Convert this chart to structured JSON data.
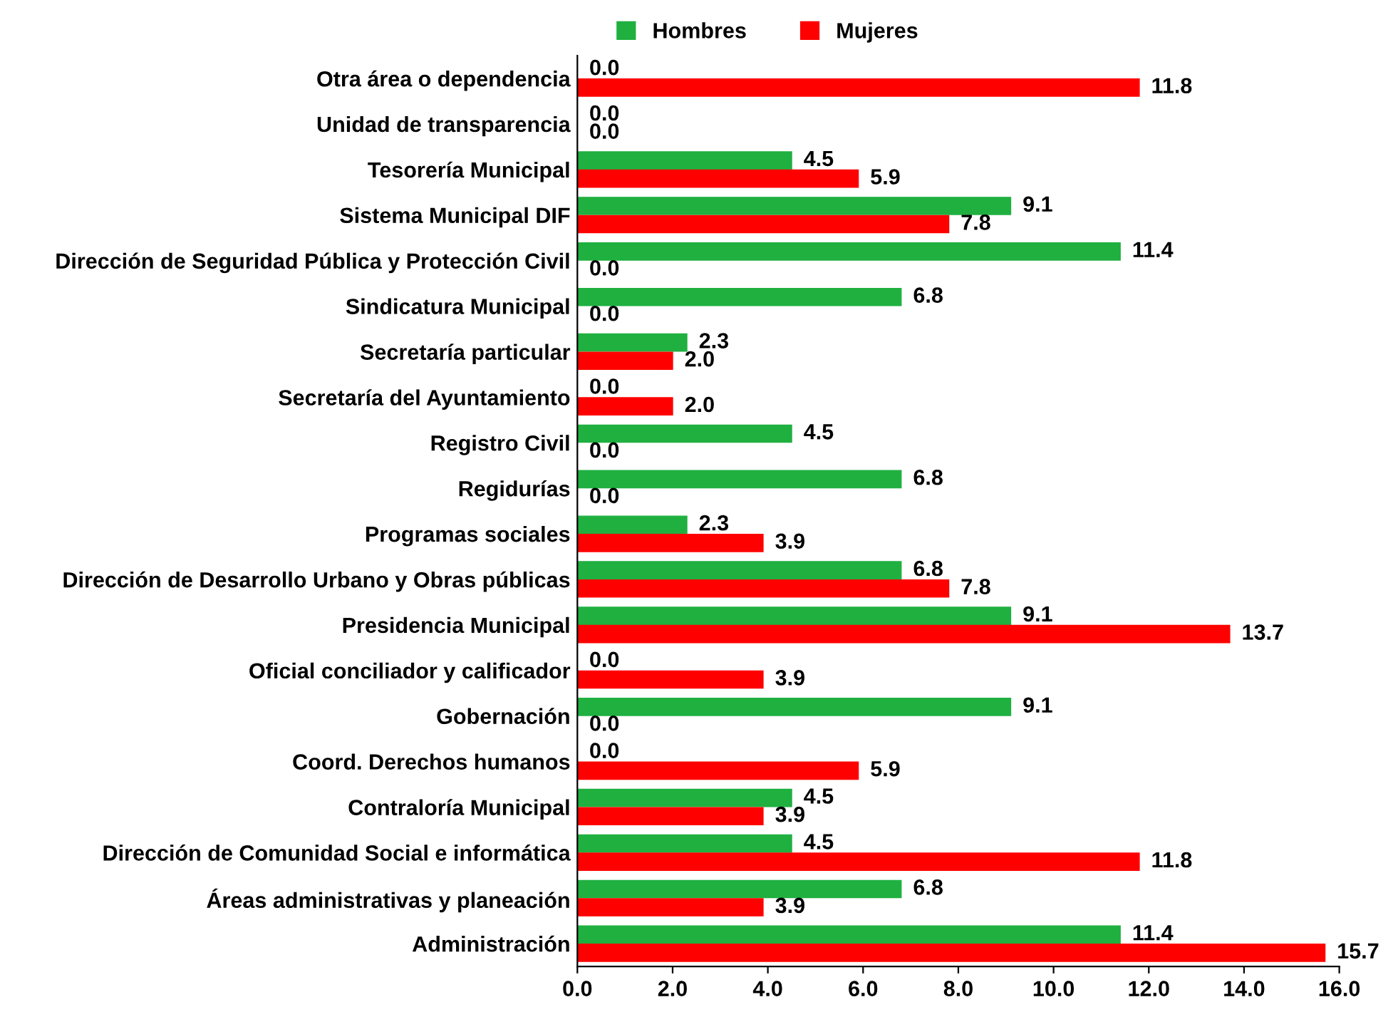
{
  "chart_data": {
    "type": "bar",
    "orientation": "horizontal",
    "legend": "top",
    "grid": false,
    "categories": [
      "Otra área o dependencia",
      "Unidad de transparencia",
      "Tesorería Municipal",
      "Sistema Municipal DIF",
      "Dirección de Seguridad Pública y Protección Civil",
      "Sindicatura Municipal",
      "Secretaría particular",
      "Secretaría del Ayuntamiento",
      "Registro Civil",
      "Regidurías",
      "Programas sociales",
      "Dirección de Desarrollo Urbano y Obras públicas",
      "Presidencia Municipal",
      "Oficial conciliador y calificador",
      "Gobernación",
      "Coord. Derechos humanos",
      "Contraloría Municipal",
      "Dirección de Comunidad Social e informática",
      "Áreas administrativas y planeación",
      "Administración"
    ],
    "series": [
      {
        "name": "Hombres",
        "color": "#1fb040",
        "values": [
          0.0,
          0.0,
          4.5,
          9.1,
          11.4,
          6.8,
          2.3,
          0.0,
          4.5,
          6.8,
          2.3,
          6.8,
          9.1,
          0.0,
          9.1,
          0.0,
          4.5,
          4.5,
          6.8,
          11.4
        ],
        "value_labels": [
          "0.0",
          "0.0",
          "4.5",
          "9.1",
          "11.4",
          "6.8",
          "2.3",
          "0.0",
          "4.5",
          "6.8",
          "2.3",
          "6.8",
          "9.1",
          "0.0",
          "9.1",
          "0.0",
          "4.5",
          "4.5",
          "6.8",
          "11.4"
        ]
      },
      {
        "name": "Mujeres",
        "color": "#ff0000",
        "values": [
          11.8,
          0.0,
          5.9,
          7.8,
          0.0,
          0.0,
          2.0,
          2.0,
          0.0,
          0.0,
          3.9,
          7.8,
          13.7,
          3.9,
          0.0,
          5.9,
          3.9,
          11.8,
          3.9,
          15.7
        ],
        "value_labels": [
          "11.8",
          "0.0",
          "5.9",
          "7.8",
          "0.0",
          "0.0",
          "2.0",
          "2.0",
          "0.0",
          "0.0",
          "3.9",
          "7.8",
          "13.7",
          "3.9",
          "0.0",
          "5.9",
          "3.9",
          "11.8",
          "3.9",
          "15.7"
        ]
      }
    ],
    "xlim": [
      0,
      16
    ],
    "xticks": [
      {
        "value": 0,
        "label": "0.0"
      },
      {
        "value": 2,
        "label": "2.0"
      },
      {
        "value": 4,
        "label": "4.0"
      },
      {
        "value": 6,
        "label": "6.0"
      },
      {
        "value": 8,
        "label": "8.0"
      },
      {
        "value": 10,
        "label": "10.0"
      },
      {
        "value": 12,
        "label": "12.0"
      },
      {
        "value": 14,
        "label": "14.0"
      },
      {
        "value": 16,
        "label": "16.0"
      }
    ]
  }
}
